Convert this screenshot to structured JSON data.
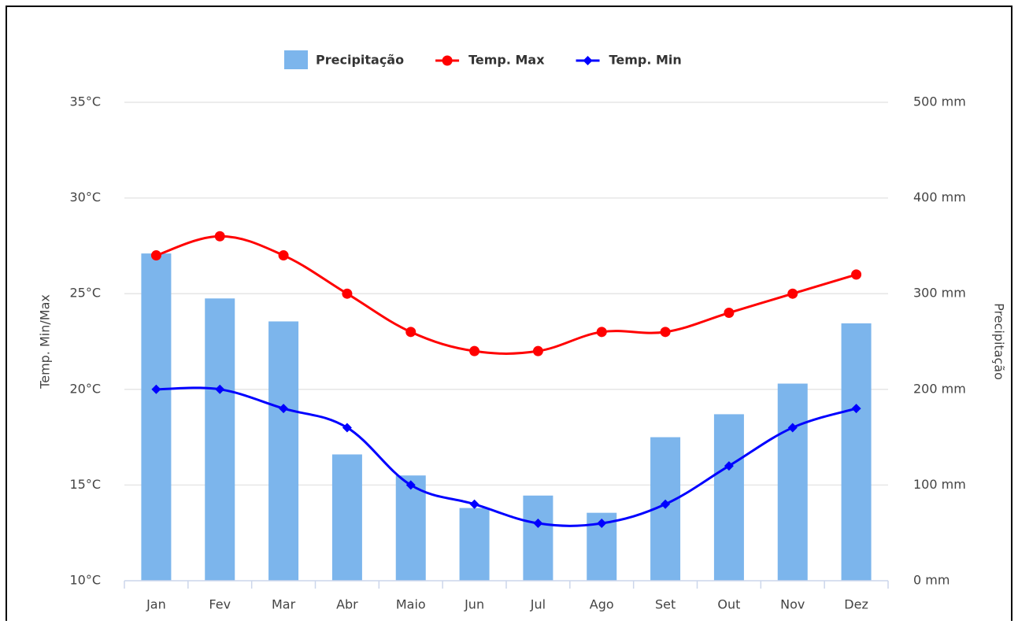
{
  "chart_data": {
    "type": "bar-line",
    "categories": [
      "Jan",
      "Fev",
      "Mar",
      "Abr",
      "Maio",
      "Jun",
      "Jul",
      "Ago",
      "Set",
      "Out",
      "Nov",
      "Dez"
    ],
    "series": [
      {
        "name": "Precipitação",
        "type": "bar",
        "axis": "y2",
        "color": "#7cb5ec",
        "values": [
          342,
          295,
          271,
          132,
          110,
          76,
          89,
          71,
          150,
          174,
          206,
          269
        ]
      },
      {
        "name": "Temp. Max",
        "type": "line",
        "marker": "circle",
        "color": "#ff0000",
        "values": [
          27,
          28,
          27,
          25,
          23,
          22,
          22,
          23,
          23,
          24,
          25,
          26
        ]
      },
      {
        "name": "Temp. Min",
        "type": "line",
        "marker": "diamond",
        "color": "#0000ff",
        "values": [
          20,
          20,
          19,
          18,
          15,
          14,
          13,
          13,
          14,
          16,
          18,
          19
        ]
      }
    ],
    "ylabel": "Temp. Min/Max",
    "y2label": "Precipitação",
    "ylim": [
      10,
      35
    ],
    "yticks": [
      {
        "value": 10,
        "label": "10°C"
      },
      {
        "value": 15,
        "label": "15°C"
      },
      {
        "value": 20,
        "label": "20°C"
      },
      {
        "value": 25,
        "label": "25°C"
      },
      {
        "value": 30,
        "label": "30°C"
      },
      {
        "value": 35,
        "label": "35°C"
      }
    ],
    "y2lim": [
      0,
      500
    ],
    "y2ticks": [
      {
        "value": 0,
        "label": "0 mm"
      },
      {
        "value": 100,
        "label": "100 mm"
      },
      {
        "value": 200,
        "label": "200 mm"
      },
      {
        "value": 300,
        "label": "300 mm"
      },
      {
        "value": 400,
        "label": "400 mm"
      },
      {
        "value": 500,
        "label": "500 mm"
      }
    ],
    "grid": true,
    "legend": "top"
  }
}
